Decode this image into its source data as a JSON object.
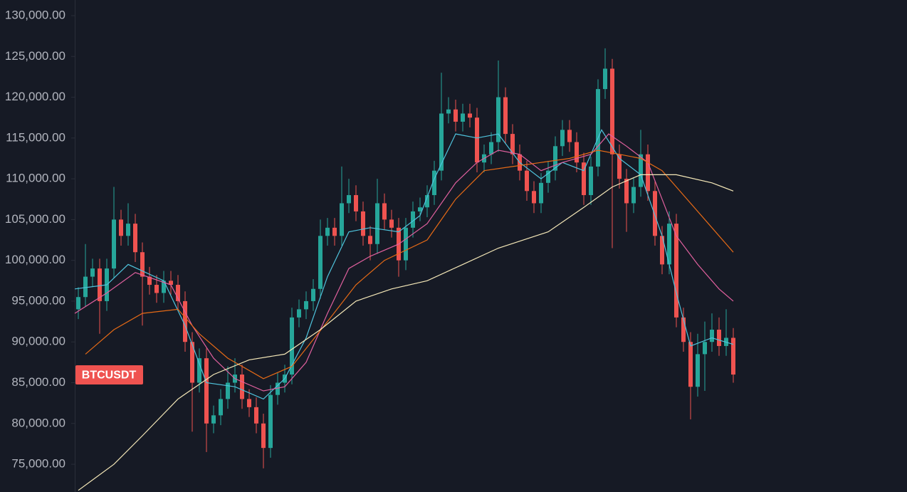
{
  "chart_data": {
    "type": "candlestick",
    "symbol": "BTCUSDT",
    "up_color": "#26a69a",
    "down_color": "#ef5350",
    "ylim": [
      71600,
      131920
    ],
    "yticks": [
      {
        "value": 75000,
        "label": "75,000.00"
      },
      {
        "value": 80000,
        "label": "80,000.00"
      },
      {
        "value": 85000,
        "label": "85,000.00"
      },
      {
        "value": 90000,
        "label": "90,000.00"
      },
      {
        "value": 95000,
        "label": "95,000.00"
      },
      {
        "value": 100000,
        "label": "100,000.00"
      },
      {
        "value": 105000,
        "label": "105,000.00"
      },
      {
        "value": 110000,
        "label": "110,000.00"
      },
      {
        "value": 115000,
        "label": "115,000.00"
      },
      {
        "value": 120000,
        "label": "120,000.00"
      },
      {
        "value": 125000,
        "label": "125,000.00"
      },
      {
        "value": 130000,
        "label": "130,000.00"
      }
    ],
    "open": [
      94000,
      95500,
      98000,
      99000,
      95000,
      99000,
      105000,
      103000,
      104500,
      101000,
      98000,
      97000,
      96000,
      97500,
      97000,
      95000,
      90000,
      85000,
      88000,
      80000,
      81000,
      83000,
      85000,
      86000,
      83000,
      82000,
      80000,
      77000,
      83500,
      85000,
      86000,
      93000,
      94000,
      95000,
      96500,
      103000,
      104000,
      103000,
      107000,
      108000,
      106000,
      103000,
      102000,
      107000,
      105000,
      104000,
      100000,
      104000,
      106000,
      106500,
      108000,
      111000,
      118000,
      118500,
      117000,
      118000,
      117500,
      112000,
      113000,
      114500,
      120000,
      115500,
      113000,
      111000,
      108500,
      107000,
      109500,
      111000,
      114000,
      116000,
      114500,
      112000,
      108000,
      111500,
      121000,
      123500,
      113000,
      110000,
      107000,
      109000,
      113000,
      108500,
      103000,
      99500,
      104500,
      93000,
      90000,
      84500,
      88500,
      90000,
      91500,
      89500,
      90500
    ],
    "high": [
      96700,
      102000,
      100200,
      100200,
      100200,
      109000,
      106200,
      107000,
      105700,
      102200,
      99200,
      98200,
      98700,
      98700,
      98200,
      96200,
      91200,
      89200,
      89200,
      82200,
      84200,
      87000,
      88000,
      87200,
      84200,
      83200,
      81200,
      84700,
      86200,
      87200,
      94200,
      95200,
      96200,
      97700,
      105000,
      105200,
      105200,
      111500,
      110000,
      109200,
      107200,
      104200,
      110000,
      108200,
      106200,
      105200,
      105200,
      107200,
      107700,
      109200,
      112200,
      123000,
      120000,
      119700,
      119200,
      119200,
      118700,
      114200,
      115700,
      124500,
      121200,
      116700,
      114200,
      112200,
      109700,
      110700,
      112200,
      115200,
      117200,
      117200,
      115700,
      113200,
      112700,
      122200,
      126000,
      124700,
      114200,
      111200,
      110200,
      116000,
      114200,
      109700,
      104200,
      106000,
      105700,
      94200,
      91200,
      91000,
      92500,
      93500,
      93000,
      94000,
      91700
    ],
    "low": [
      92800,
      94300,
      96800,
      91000,
      93800,
      97800,
      101800,
      101800,
      99800,
      92000,
      95800,
      94800,
      94800,
      95800,
      93800,
      88800,
      79000,
      83800,
      76500,
      78800,
      79800,
      81800,
      83800,
      81800,
      80800,
      78800,
      74500,
      75800,
      82300,
      83800,
      84800,
      91800,
      92800,
      93800,
      95300,
      101800,
      101800,
      101800,
      105800,
      104800,
      101800,
      100000,
      100800,
      103800,
      102800,
      98000,
      98800,
      102800,
      104800,
      105300,
      106800,
      109800,
      116800,
      115800,
      115800,
      116300,
      110800,
      110800,
      111800,
      113300,
      114300,
      111800,
      109800,
      107300,
      105800,
      105800,
      108300,
      109800,
      112800,
      113300,
      110800,
      106800,
      106800,
      110300,
      119800,
      101500,
      108800,
      103500,
      105800,
      107800,
      107300,
      101800,
      98300,
      98300,
      91800,
      88800,
      80500,
      83300,
      84000,
      88800,
      88300,
      88300,
      85000
    ],
    "close": [
      95500,
      98000,
      99000,
      95000,
      99000,
      105000,
      103000,
      104500,
      101000,
      98000,
      97000,
      96000,
      97500,
      97000,
      95000,
      90000,
      85000,
      88000,
      80000,
      81000,
      83000,
      85000,
      86000,
      83000,
      82000,
      80000,
      77000,
      83500,
      85000,
      86000,
      93000,
      94000,
      95000,
      96500,
      103000,
      104000,
      103000,
      107000,
      108000,
      106000,
      103000,
      102000,
      107000,
      105000,
      104000,
      100000,
      104000,
      106000,
      106500,
      108000,
      111000,
      118000,
      118500,
      117000,
      118000,
      117500,
      112000,
      113000,
      114500,
      120000,
      115500,
      113000,
      111000,
      108500,
      107000,
      109500,
      111000,
      114000,
      116000,
      114500,
      112000,
      108000,
      111500,
      121000,
      123500,
      113000,
      110000,
      107000,
      109000,
      113000,
      108500,
      103000,
      99500,
      104500,
      93000,
      90000,
      84500,
      88500,
      90000,
      91500,
      89500,
      90500,
      86000
    ],
    "lines": [
      {
        "color": "#4fc3dc",
        "x": [
          -0.5,
          4,
          7,
          12,
          15,
          18,
          22,
          26,
          29,
          32,
          35,
          38,
          41,
          45,
          48,
          50,
          53,
          56,
          59,
          62,
          65,
          68,
          71,
          73.5,
          76,
          79,
          82,
          84,
          86,
          89,
          92
        ],
        "values": [
          96500,
          97000,
          99500,
          97500,
          92000,
          85000,
          84500,
          83000,
          85500,
          90500,
          98000,
          103500,
          104000,
          103500,
          105500,
          110000,
          115500,
          115000,
          115500,
          112000,
          110000,
          112000,
          111000,
          116000,
          112500,
          110500,
          103000,
          96000,
          89500,
          90500,
          89700
        ]
      },
      {
        "color": "#e0609e",
        "x": [
          -0.5,
          4,
          8,
          13,
          16,
          19,
          22,
          26,
          29,
          32,
          35,
          38,
          41,
          45,
          49,
          53,
          56,
          59,
          62,
          65,
          68,
          72,
          74.5,
          77,
          80,
          82,
          84,
          87,
          90,
          92
        ],
        "values": [
          93500,
          96000,
          98500,
          97000,
          92000,
          88000,
          85500,
          84000,
          84500,
          87500,
          93500,
          99000,
          100500,
          102000,
          104500,
          109500,
          112000,
          113500,
          113000,
          111000,
          112000,
          113000,
          115500,
          114000,
          112000,
          107500,
          103000,
          99500,
          96500,
          95000
        ]
      },
      {
        "color": "#e66a16",
        "x": [
          1,
          5,
          9,
          14,
          17,
          21,
          26,
          30,
          35,
          39,
          43,
          49,
          53,
          57,
          61,
          65,
          69,
          73,
          76,
          79,
          82,
          85,
          89,
          92
        ],
        "values": [
          88500,
          91500,
          93500,
          94000,
          91000,
          88000,
          85500,
          87000,
          92500,
          97000,
          100000,
          102500,
          107500,
          111000,
          111500,
          112000,
          112500,
          113500,
          113000,
          112500,
          111000,
          108000,
          104000,
          101000
        ]
      },
      {
        "color": "#f5e8b8",
        "x": [
          0,
          5,
          9,
          14,
          19,
          24,
          29,
          34,
          39,
          44,
          49,
          54,
          59,
          66,
          71,
          75,
          79,
          84,
          89,
          92
        ],
        "values": [
          71800,
          75000,
          78500,
          83000,
          86000,
          87800,
          88500,
          91500,
          95000,
          96500,
          97500,
          99500,
          101500,
          103500,
          106500,
          109000,
          110500,
          110500,
          109500,
          108500
        ]
      }
    ]
  }
}
